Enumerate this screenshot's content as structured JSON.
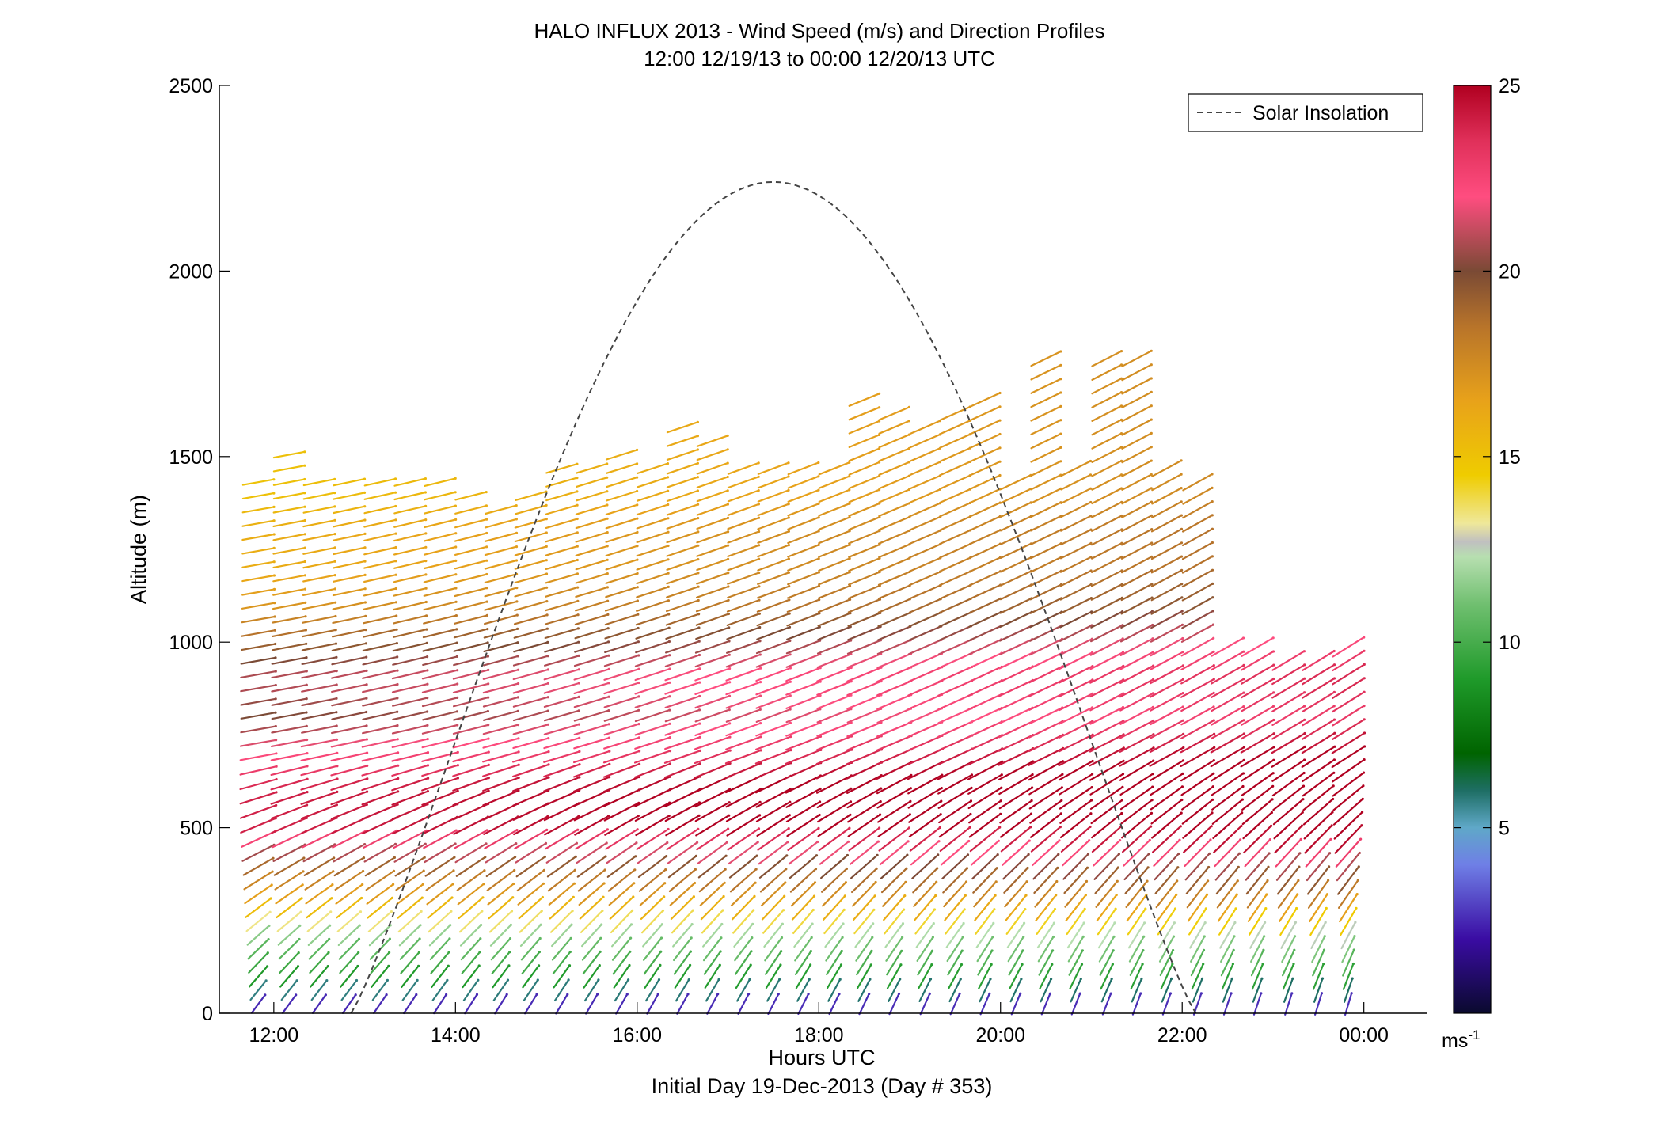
{
  "chart_data": {
    "type": "wind_barb_profile",
    "title": "HALO INFLUX 2013 - Wind Speed (m/s) and Direction Profiles",
    "subtitle": "12:00 12/19/13 to 00:00 12/20/13  UTC",
    "xlabel": "Hours UTC",
    "ylabel": "Altitude (m)",
    "footer": "Initial Day 19-Dec-2013 (Day # 353)",
    "x_range_hours": [
      11.4,
      24.7
    ],
    "y_range_m": [
      0,
      2500
    ],
    "x_ticks": [
      {
        "value": 12,
        "label": "12:00"
      },
      {
        "value": 14,
        "label": "14:00"
      },
      {
        "value": 16,
        "label": "16:00"
      },
      {
        "value": 18,
        "label": "18:00"
      },
      {
        "value": 20,
        "label": "20:00"
      },
      {
        "value": 22,
        "label": "22:00"
      },
      {
        "value": 24,
        "label": "00:00"
      }
    ],
    "y_ticks": [
      {
        "value": 0,
        "label": "0"
      },
      {
        "value": 500,
        "label": "500"
      },
      {
        "value": 1000,
        "label": "1000"
      },
      {
        "value": 1500,
        "label": "1500"
      },
      {
        "value": 2000,
        "label": "2000"
      },
      {
        "value": 2500,
        "label": "2500"
      }
    ],
    "legend": {
      "label": "Solar Insolation",
      "position": "top-right"
    },
    "solar_insolation": {
      "start_hour": 12.85,
      "end_hour": 22.15,
      "peak_hour": 17.5,
      "peak_altitude_m": 2240
    },
    "colorbar": {
      "min": 0,
      "max": 25,
      "ticks": [
        {
          "value": 5,
          "label": "5"
        },
        {
          "value": 10,
          "label": "10"
        },
        {
          "value": 15,
          "label": "15"
        },
        {
          "value": 20,
          "label": "20"
        },
        {
          "value": 25,
          "label": "25"
        }
      ],
      "unit_label": "ms",
      "unit_exponent": "-1",
      "stops": [
        {
          "v": 0,
          "c": "#0a0a2e"
        },
        {
          "v": 2,
          "c": "#3a0ca3"
        },
        {
          "v": 4,
          "c": "#6f7fe6"
        },
        {
          "v": 5,
          "c": "#5fa8c8"
        },
        {
          "v": 6,
          "c": "#1e6e64"
        },
        {
          "v": 7,
          "c": "#006400"
        },
        {
          "v": 9,
          "c": "#1f9a2a"
        },
        {
          "v": 11,
          "c": "#6fbf6f"
        },
        {
          "v": 12.3,
          "c": "#b7dfb0"
        },
        {
          "v": 12.7,
          "c": "#c0c0c0"
        },
        {
          "v": 13.2,
          "c": "#efe89a"
        },
        {
          "v": 14.5,
          "c": "#efcc00"
        },
        {
          "v": 16.5,
          "c": "#e8a21a"
        },
        {
          "v": 18.5,
          "c": "#b8742a"
        },
        {
          "v": 20,
          "c": "#7a4a35"
        },
        {
          "v": 22,
          "c": "#ff4d80"
        },
        {
          "v": 23.5,
          "c": "#e0305a"
        },
        {
          "v": 25,
          "c": "#b00020"
        }
      ]
    },
    "profile_times_hours": [
      11.83,
      12.17,
      12.5,
      12.83,
      13.17,
      13.5,
      13.83,
      14.17,
      14.5,
      14.83,
      15.17,
      15.5,
      15.83,
      16.17,
      16.5,
      16.83,
      17.17,
      17.5,
      17.83,
      18.17,
      18.5,
      18.83,
      19.17,
      19.5,
      19.83,
      20.17,
      20.5,
      20.83,
      21.17,
      21.5,
      21.83,
      22.17,
      22.5,
      22.83,
      23.17,
      23.5,
      23.83
    ],
    "profile_top_altitude_m": [
      1450,
      1530,
      1450,
      1440,
      1440,
      1440,
      1450,
      1400,
      1380,
      1420,
      1470,
      1500,
      1530,
      1500,
      1610,
      1550,
      1500,
      1490,
      1490,
      1500,
      1660,
      1640,
      1600,
      1620,
      1660,
      1450,
      1790,
      1480,
      1780,
      1790,
      1500,
      1450,
      1000,
      1010,
      980,
      960,
      1010
    ],
    "wind_speed_by_altitude": [
      {
        "alt_m": 25,
        "speed_ms": 2.5
      },
      {
        "alt_m": 100,
        "speed_ms": 9
      },
      {
        "alt_m": 200,
        "speed_ms": 11
      },
      {
        "alt_m": 300,
        "speed_ms": 16
      },
      {
        "alt_m": 400,
        "speed_ms": 19
      },
      {
        "alt_m": 500,
        "speed_ms": 24
      },
      {
        "alt_m": 600,
        "speed_ms": 24
      },
      {
        "alt_m": 700,
        "speed_ms": 22
      },
      {
        "alt_m": 800,
        "speed_ms": 20
      },
      {
        "alt_m": 900,
        "speed_ms": 21
      },
      {
        "alt_m": 1000,
        "speed_ms": 19
      },
      {
        "alt_m": 1100,
        "speed_ms": 17
      },
      {
        "alt_m": 1200,
        "speed_ms": 16
      },
      {
        "alt_m": 1300,
        "speed_ms": 16
      },
      {
        "alt_m": 1400,
        "speed_ms": 15
      },
      {
        "alt_m": 1500,
        "speed_ms": 15
      }
    ],
    "late_period_speed_increase_ms": 3
  }
}
